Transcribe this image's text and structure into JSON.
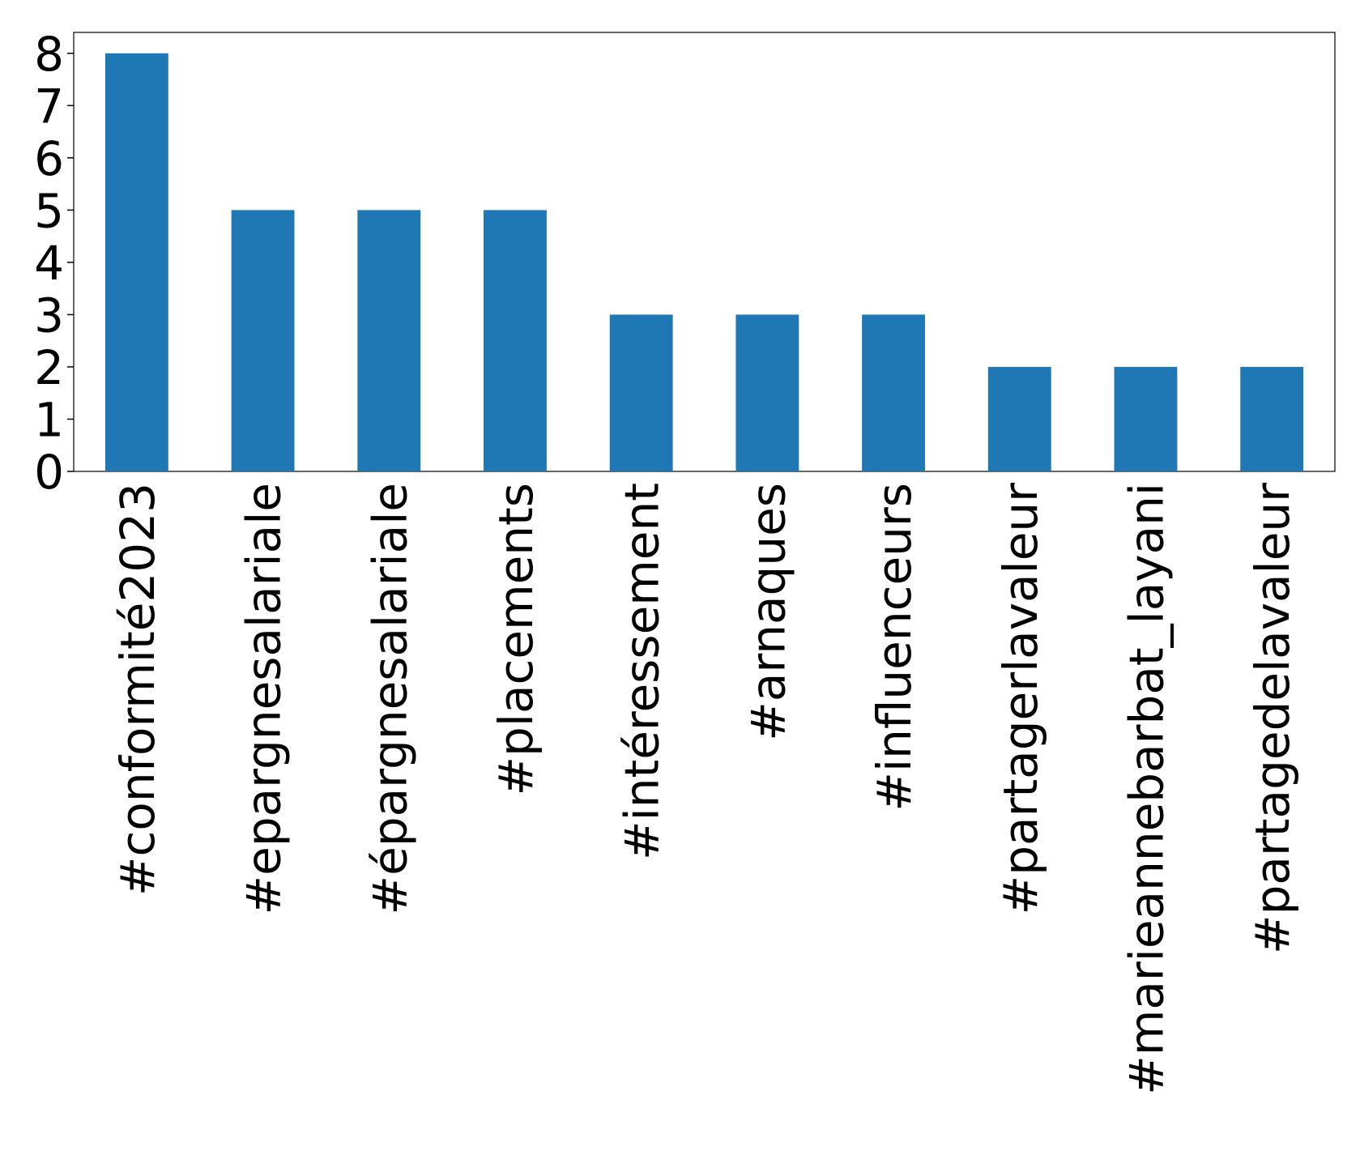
{
  "chart_data": {
    "type": "bar",
    "categories": [
      "#conformité2023",
      "#epargnesalariale",
      "#épargnesalariale",
      "#placements",
      "#intéressement",
      "#arnaques",
      "#influenceurs",
      "#partagerlavaleur",
      "#marieannebarbat_layani",
      "#partagedelavaleur"
    ],
    "values": [
      8,
      5,
      5,
      5,
      3,
      3,
      3,
      2,
      2,
      2
    ],
    "color": "#1f77b4",
    "ylim": [
      0,
      8.4
    ],
    "yticks": [
      0,
      1,
      2,
      3,
      4,
      5,
      6,
      7,
      8
    ],
    "grid": false
  }
}
